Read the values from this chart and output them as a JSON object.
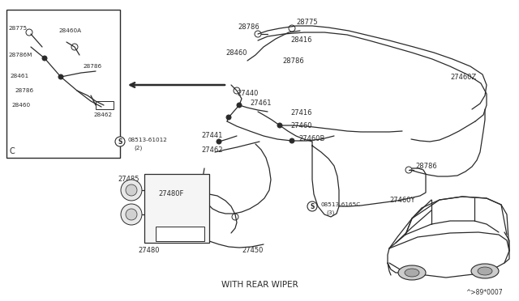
{
  "bg_color": "#ffffff",
  "line_color": "#2a2a2a",
  "text_color": "#2a2a2a",
  "diagram_number": "^>89*0007",
  "caption": "WITH REAR WIPER",
  "inset_label": "C",
  "bolt_label1": "08513-61012",
  "bolt_label1_sub": "(2)",
  "bolt_label2": "08513-6165C",
  "bolt_label2_sub": "(3)"
}
